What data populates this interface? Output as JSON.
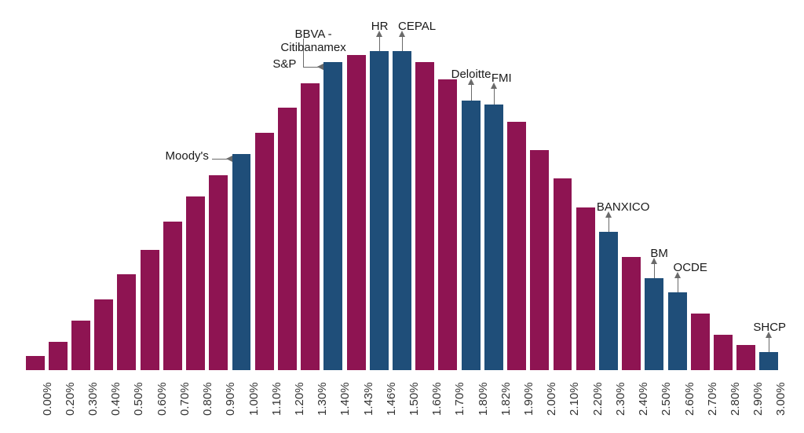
{
  "chart": {
    "type": "bar",
    "background_color": "#ffffff",
    "bar_width_ratio": 0.82,
    "font_family": "Arial",
    "xlabel_fontsize": 15,
    "annotation_fontsize": 15,
    "annotation_line_color": "#6a6a6a",
    "categories": [
      "0.00%",
      "0.20%",
      "0.30%",
      "0.40%",
      "0.50%",
      "0.60%",
      "0.70%",
      "0.80%",
      "0.90%",
      "1.00%",
      "1.10%",
      "1.20%",
      "1.30%",
      "1.40%",
      "1.43%",
      "1.46%",
      "1.50%",
      "1.60%",
      "1.70%",
      "1.80%",
      "1.82%",
      "1.90%",
      "2.00%",
      "2.10%",
      "2.20%",
      "2.30%",
      "2.40%",
      "2.50%",
      "2.60%",
      "2.70%",
      "2.80%",
      "2.90%",
      "3.00%"
    ],
    "values": [
      4,
      8,
      14,
      20,
      27,
      34,
      42,
      49,
      55,
      61,
      67,
      74,
      81,
      87,
      89,
      90,
      90,
      87,
      82,
      76,
      75,
      70,
      62,
      54,
      46,
      39,
      32,
      26,
      22,
      16,
      10,
      7,
      5
    ],
    "colors": [
      "#8e1452",
      "#8e1452",
      "#8e1452",
      "#8e1452",
      "#8e1452",
      "#8e1452",
      "#8e1452",
      "#8e1452",
      "#8e1452",
      "#1f4e79",
      "#8e1452",
      "#8e1452",
      "#8e1452",
      "#1f4e79",
      "#8e1452",
      "#1f4e79",
      "#1f4e79",
      "#8e1452",
      "#8e1452",
      "#1f4e79",
      "#1f4e79",
      "#8e1452",
      "#8e1452",
      "#8e1452",
      "#8e1452",
      "#1f4e79",
      "#8e1452",
      "#1f4e79",
      "#1f4e79",
      "#8e1452",
      "#8e1452",
      "#8e1452",
      "#1f4e79"
    ],
    "y_max": 100,
    "annotations": [
      {
        "text": "Moody's",
        "bar_index": 9,
        "direction": "left",
        "text_dx": -85,
        "text_dy": -12,
        "line_len": 26
      },
      {
        "text": "S&P",
        "bar_index": 13,
        "direction": "left",
        "text_dx": -65,
        "text_dy": -12,
        "line_len": 26
      },
      {
        "text": "BBVA -\nCitibanamex",
        "bar_index": 13,
        "direction": "left",
        "text_dx": -55,
        "text_dy": -50,
        "line_len": 26,
        "multiline": true,
        "line_extra_up": 36
      },
      {
        "text": "HR",
        "bar_index": 15,
        "direction": "up",
        "text_dx": -10,
        "text_dy": -40,
        "line_len": 18
      },
      {
        "text": "CEPAL",
        "bar_index": 16,
        "direction": "up",
        "text_dx": -5,
        "text_dy": -40,
        "line_len": 18
      },
      {
        "text": "Deloitte",
        "bar_index": 19,
        "direction": "up",
        "text_dx": -25,
        "text_dy": -42,
        "line_len": 20
      },
      {
        "text": "FMI",
        "bar_index": 20,
        "direction": "up",
        "text_dx": -3,
        "text_dy": -42,
        "line_len": 20
      },
      {
        "text": "BANXICO",
        "bar_index": 25,
        "direction": "up",
        "text_dx": -15,
        "text_dy": -40,
        "line_len": 18
      },
      {
        "text": "BM",
        "bar_index": 27,
        "direction": "up",
        "text_dx": -5,
        "text_dy": -40,
        "line_len": 18
      },
      {
        "text": "OCDE",
        "bar_index": 28,
        "direction": "up",
        "text_dx": -5,
        "text_dy": -40,
        "line_len": 18
      },
      {
        "text": "SHCP",
        "bar_index": 32,
        "direction": "up",
        "text_dx": -20,
        "text_dy": -40,
        "line_len": 18
      }
    ]
  }
}
